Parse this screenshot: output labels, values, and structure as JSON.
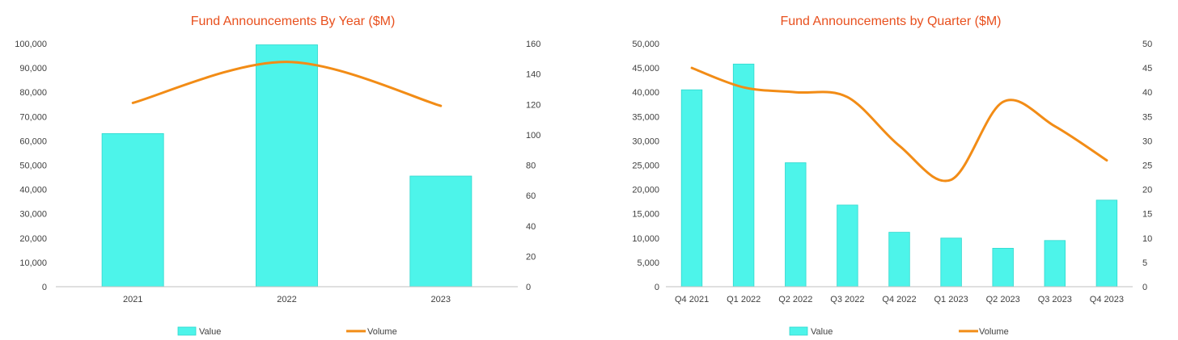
{
  "colors": {
    "title": "#E8501E",
    "bar": "#4DF4EA",
    "bar_edge": "#30D8CE",
    "line": "#F28C16",
    "axis": "#BFBFBF",
    "text": "#404040"
  },
  "legend": {
    "value_label": "Value",
    "volume_label": "Volume"
  },
  "chart_data": [
    {
      "type": "bar",
      "title": "Fund Announcements By Year ($M)",
      "categories": [
        "2021",
        "2022",
        "2023"
      ],
      "series": [
        {
          "name": "Value",
          "type": "bar",
          "axis": "left",
          "values": [
            63000,
            99500,
            45500
          ]
        },
        {
          "name": "Volume",
          "type": "line",
          "axis": "right",
          "smooth": true,
          "values": [
            121,
            148,
            119
          ]
        }
      ],
      "ylim_left": [
        0,
        100000
      ],
      "ylim_right": [
        0,
        160
      ],
      "yticks_left": [
        "0",
        "10,000",
        "20,000",
        "30,000",
        "40,000",
        "50,000",
        "60,000",
        "70,000",
        "80,000",
        "90,000",
        "100,000"
      ],
      "yticks_right": [
        "0",
        "20",
        "40",
        "60",
        "80",
        "100",
        "120",
        "140",
        "160"
      ],
      "legend_position": "bottom",
      "grid": false
    },
    {
      "type": "bar",
      "title": "Fund Announcements by Quarter ($M)",
      "categories": [
        "Q4 2021",
        "Q1 2022",
        "Q2 2022",
        "Q3 2022",
        "Q4 2022",
        "Q1 2023",
        "Q2 2023",
        "Q3 2023",
        "Q4 2023"
      ],
      "series": [
        {
          "name": "Value",
          "type": "bar",
          "axis": "left",
          "values": [
            40500,
            45800,
            25500,
            16800,
            11200,
            10000,
            7900,
            9500,
            17800
          ]
        },
        {
          "name": "Volume",
          "type": "line",
          "axis": "right",
          "smooth": true,
          "values": [
            45,
            41,
            40,
            39,
            29,
            22,
            38,
            33,
            26
          ]
        }
      ],
      "ylim_left": [
        0,
        50000
      ],
      "ylim_right": [
        0,
        50
      ],
      "yticks_left": [
        "0",
        "5,000",
        "10,000",
        "15,000",
        "20,000",
        "25,000",
        "30,000",
        "35,000",
        "40,000",
        "45,000",
        "50,000"
      ],
      "yticks_right": [
        "0",
        "5",
        "10",
        "15",
        "20",
        "25",
        "30",
        "35",
        "40",
        "45",
        "50"
      ],
      "legend_position": "bottom",
      "grid": false
    }
  ]
}
